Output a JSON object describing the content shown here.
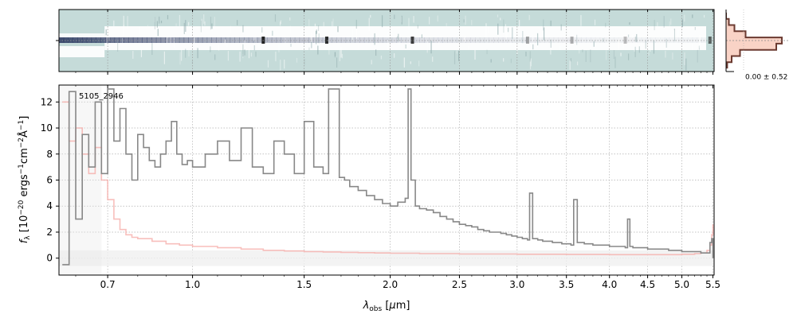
{
  "chart_data": [
    {
      "panel": "2d-spectrum",
      "type": "heatmap",
      "colormap_background": "#c5dbd9",
      "colormap_emission": "#ffffff",
      "colormap_absorption": "#2f3c63"
    },
    {
      "panel": "profile",
      "type": "line",
      "annotation": "0.00 ± 0.52",
      "profile_color": "#6b3a30",
      "profile_fill": "#f8c8b8",
      "x": [
        0.0,
        0.05,
        0.15,
        0.35,
        1.0,
        0.9,
        0.25,
        0.1,
        0.02
      ],
      "y": [
        -4,
        -3,
        -2,
        -1,
        0,
        1,
        2,
        3,
        4
      ]
    },
    {
      "panel": "1d-spectrum",
      "type": "line",
      "title": "",
      "label": "5105_2946",
      "xlabel": "λobs [μm]",
      "ylabel": "fλ [10⁻²⁰ ergs⁻¹cm⁻²Å⁻¹]",
      "xscale": "asinh-like",
      "xlim": [
        0.55,
        5.52
      ],
      "ylim": [
        -1.3,
        13.3
      ],
      "xticks": [
        0.7,
        1.0,
        1.5,
        2.0,
        2.5,
        3.0,
        3.5,
        4.0,
        4.5,
        5.0,
        5.5
      ],
      "xtick_labels": [
        "0.7",
        "1.0",
        "1.5",
        "2.0",
        "2.5",
        "3.0",
        "3.5",
        "4.0",
        "4.5",
        "5.0",
        "5.5"
      ],
      "yticks": [
        0,
        2,
        4,
        6,
        8,
        10,
        12
      ],
      "ytick_labels": [
        "0",
        "2",
        "4",
        "6",
        "8",
        "10",
        "12"
      ],
      "grid": true,
      "series": [
        {
          "color": "#888888",
          "x": [
            0.56,
            0.58,
            0.6,
            0.62,
            0.64,
            0.66,
            0.68,
            0.7,
            0.72,
            0.74,
            0.76,
            0.78,
            0.8,
            0.82,
            0.84,
            0.86,
            0.88,
            0.9,
            0.92,
            0.94,
            0.96,
            0.98,
            1.0,
            1.05,
            1.1,
            1.15,
            1.2,
            1.25,
            1.3,
            1.35,
            1.4,
            1.45,
            1.5,
            1.55,
            1.6,
            1.63,
            1.66,
            1.69,
            1.72,
            1.75,
            1.8,
            1.85,
            1.9,
            1.95,
            2.0,
            2.05,
            2.1,
            2.12,
            2.14,
            2.17,
            2.2,
            2.25,
            2.3,
            2.35,
            2.4,
            2.45,
            2.5,
            2.55,
            2.6,
            2.65,
            2.7,
            2.75,
            2.8,
            2.85,
            2.9,
            2.95,
            3.0,
            3.05,
            3.1,
            3.12,
            3.15,
            3.2,
            3.25,
            3.3,
            3.35,
            3.4,
            3.45,
            3.5,
            3.55,
            3.58,
            3.62,
            3.7,
            3.8,
            3.9,
            4.0,
            4.1,
            4.2,
            4.23,
            4.26,
            4.3,
            4.4,
            4.5,
            4.6,
            4.7,
            4.8,
            4.9,
            5.0,
            5.1,
            5.2,
            5.3,
            5.4,
            5.45,
            5.48,
            5.5
          ],
          "y": [
            -0.5,
            12.8,
            3.0,
            9.5,
            7.0,
            12.0,
            6.5,
            13.0,
            9.0,
            11.5,
            8.0,
            6.0,
            9.5,
            8.5,
            7.5,
            7.0,
            8.0,
            9.0,
            10.5,
            8.0,
            7.2,
            7.5,
            7.0,
            8.0,
            9.0,
            7.5,
            10.0,
            7.0,
            6.5,
            9.0,
            8.0,
            6.5,
            10.5,
            7.0,
            6.5,
            13.0,
            13.0,
            6.2,
            6.0,
            5.5,
            5.2,
            4.8,
            4.5,
            4.2,
            4.0,
            4.3,
            4.6,
            13.0,
            6.0,
            4.0,
            3.8,
            3.7,
            3.5,
            3.2,
            3.0,
            2.8,
            2.6,
            2.5,
            2.4,
            2.2,
            2.1,
            2.0,
            2.0,
            1.9,
            1.8,
            1.7,
            1.6,
            1.5,
            1.4,
            5.0,
            1.5,
            1.4,
            1.3,
            1.3,
            1.2,
            1.2,
            1.1,
            1.1,
            1.0,
            4.5,
            1.2,
            1.1,
            1.0,
            1.0,
            0.9,
            0.9,
            0.8,
            3.0,
            0.9,
            0.8,
            0.8,
            0.7,
            0.7,
            0.7,
            0.6,
            0.6,
            0.5,
            0.5,
            0.5,
            0.4,
            0.4,
            1.2,
            1.5,
            0.0
          ]
        },
        {
          "color": "#f5aaa6",
          "x": [
            0.56,
            0.58,
            0.6,
            0.62,
            0.64,
            0.66,
            0.68,
            0.7,
            0.72,
            0.74,
            0.76,
            0.78,
            0.8,
            0.85,
            0.9,
            0.95,
            1.0,
            1.1,
            1.2,
            1.3,
            1.4,
            1.5,
            1.6,
            1.7,
            1.8,
            1.9,
            2.0,
            2.2,
            2.5,
            3.0,
            3.5,
            4.0,
            4.5,
            5.0,
            5.2,
            5.3,
            5.4,
            5.45,
            5.48,
            5.5
          ],
          "y": [
            12.0,
            9.0,
            10.0,
            8.0,
            6.5,
            8.5,
            6.0,
            4.5,
            3.0,
            2.2,
            1.8,
            1.6,
            1.5,
            1.3,
            1.1,
            1.0,
            0.9,
            0.8,
            0.7,
            0.6,
            0.55,
            0.5,
            0.48,
            0.45,
            0.42,
            0.4,
            0.38,
            0.35,
            0.32,
            0.3,
            0.28,
            0.27,
            0.27,
            0.3,
            0.35,
            0.4,
            0.6,
            1.0,
            1.8,
            2.6
          ]
        }
      ]
    }
  ]
}
